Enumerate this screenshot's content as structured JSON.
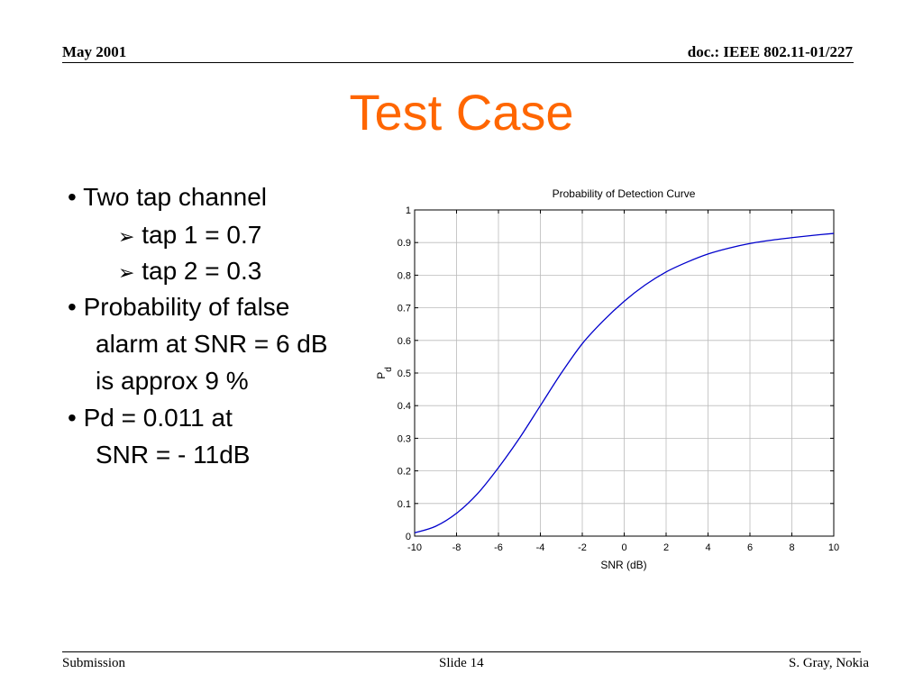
{
  "header": {
    "date": "May 2001",
    "doc": "doc.: IEEE 802.11-01/227"
  },
  "title": "Test Case",
  "bullets": [
    {
      "text": "• Two tap channel"
    },
    {
      "prefix": "➢",
      "text": "tap 1 = 0.7"
    },
    {
      "prefix": "➢",
      "text": "tap 2 = 0.3"
    },
    {
      "text": "• Probability of false"
    },
    {
      "text": "alarm at SNR = 6 dB"
    },
    {
      "text": "is approx 9 %"
    },
    {
      "text": "•  Pd = 0.011 at"
    },
    {
      "text": "SNR = - 11dB"
    }
  ],
  "chart_data": {
    "type": "line",
    "title": "Probability of Detection Curve",
    "xlabel": "SNR (dB)",
    "ylabel": "P",
    "ylabel_sub": "d",
    "xlim": [
      -10,
      10
    ],
    "ylim": [
      0,
      1
    ],
    "xticks": [
      "-10",
      "-8",
      "-6",
      "-4",
      "-2",
      "0",
      "2",
      "4",
      "6",
      "8",
      "10"
    ],
    "yticks": [
      "0",
      "0.1",
      "0.2",
      "0.3",
      "0.4",
      "0.5",
      "0.6",
      "0.7",
      "0.8",
      "0.9",
      "1"
    ],
    "grid": true,
    "line_color": "#0000cc",
    "series": [
      {
        "x": [
          -10,
          -9,
          -8,
          -7,
          -6,
          -5,
          -4,
          -3,
          -2,
          -1,
          0,
          1,
          2,
          3,
          4,
          5,
          6,
          7,
          8,
          9,
          10
        ],
        "y": [
          0.01,
          0.03,
          0.07,
          0.13,
          0.21,
          0.3,
          0.4,
          0.5,
          0.59,
          0.66,
          0.72,
          0.77,
          0.81,
          0.84,
          0.865,
          0.883,
          0.897,
          0.907,
          0.915,
          0.922,
          0.928
        ]
      }
    ]
  },
  "footer": {
    "left": "Submission",
    "center": "Slide 14",
    "right": "S. Gray, Nokia"
  }
}
